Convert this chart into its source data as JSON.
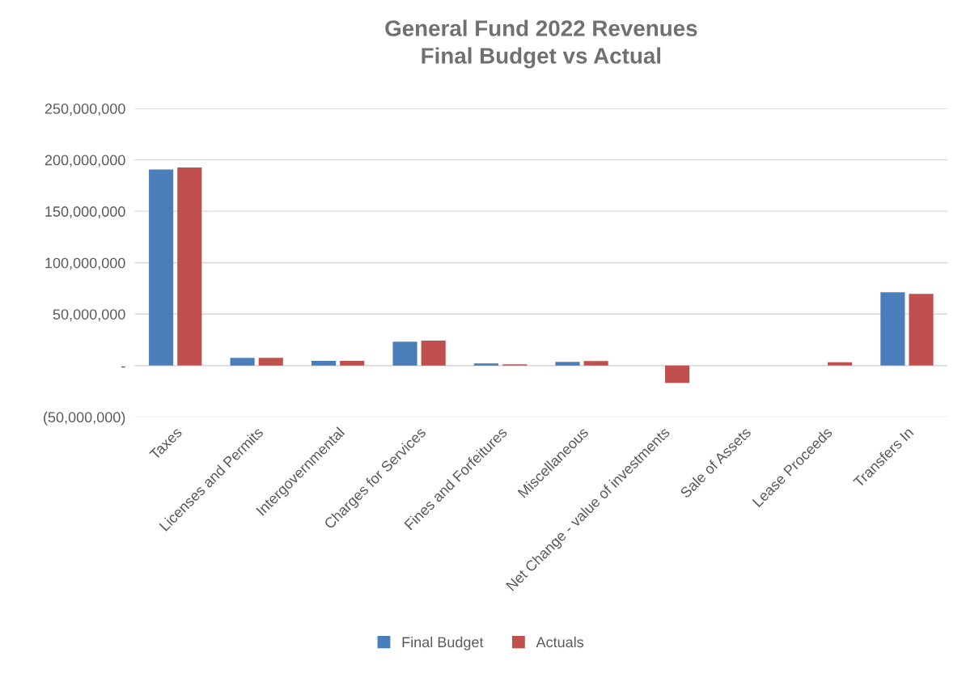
{
  "chart_data": {
    "type": "bar",
    "title": "General Fund 2022 Revenues\nFinal Budget vs Actual",
    "categories": [
      "Taxes",
      "Licenses and Permits",
      "Intergovernmental",
      "Charges for Services",
      "Fines and Forfeitures",
      "Miscellaneous",
      "Net Change - value of investments",
      "Sale of Assets",
      "Lease Proceeds",
      "Transfers In"
    ],
    "series": [
      {
        "name": "Final Budget",
        "color": "#4a7ebb",
        "values": [
          190700000,
          7500000,
          4600000,
          23200000,
          2100000,
          3600000,
          null,
          null,
          null,
          71200000
        ]
      },
      {
        "name": "Actuals",
        "color": "#c0504d",
        "values": [
          192700000,
          7500000,
          4600000,
          24300000,
          1200000,
          4400000,
          -16900000,
          null,
          3300000,
          69700000
        ]
      }
    ],
    "ylim": [
      -50000000,
      250000000
    ],
    "yticks": [
      {
        "value": -50000000,
        "label": "(50,000,000)"
      },
      {
        "value": 0,
        "label": "-"
      },
      {
        "value": 50000000,
        "label": "50,000,000"
      },
      {
        "value": 100000000,
        "label": "100,000,000"
      },
      {
        "value": 150000000,
        "label": "150,000,000"
      },
      {
        "value": 200000000,
        "label": "200,000,000"
      },
      {
        "value": 250000000,
        "label": "250,000,000"
      }
    ],
    "grid": "y",
    "legend": "bottom"
  }
}
